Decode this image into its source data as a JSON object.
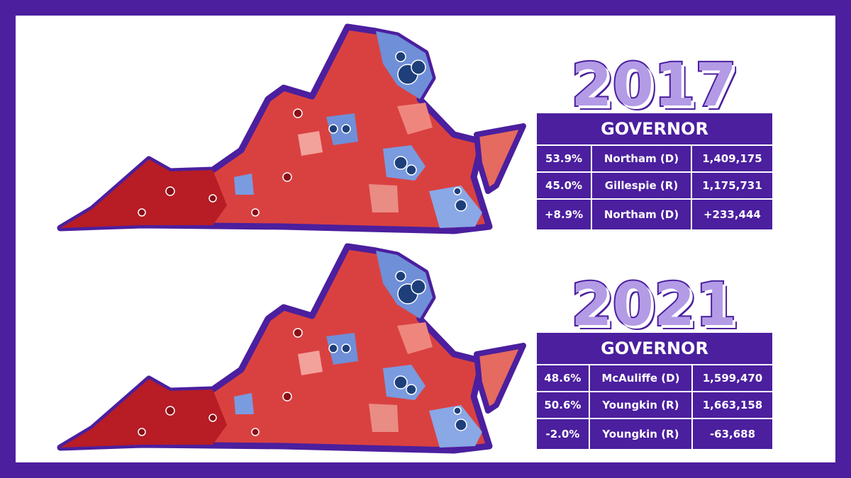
{
  "panels": [
    {
      "year": "2017",
      "table": {
        "title": "GOVERNOR",
        "rows": [
          [
            "53.9%",
            "Northam (D)",
            "1,409,175"
          ],
          [
            "45.0%",
            "Gillespie (R)",
            "1,175,731"
          ],
          [
            "+8.9%",
            "Northam (D)",
            "+233,444"
          ]
        ]
      }
    },
    {
      "year": "2021",
      "table": {
        "title": "GOVERNOR",
        "rows": [
          [
            "48.6%",
            "McAuliffe (D)",
            "1,599,470"
          ],
          [
            "50.6%",
            "Youngkin (R)",
            "1,663,158"
          ],
          [
            "-2.0%",
            "Youngkin (R)",
            "-63,688"
          ]
        ]
      }
    }
  ]
}
